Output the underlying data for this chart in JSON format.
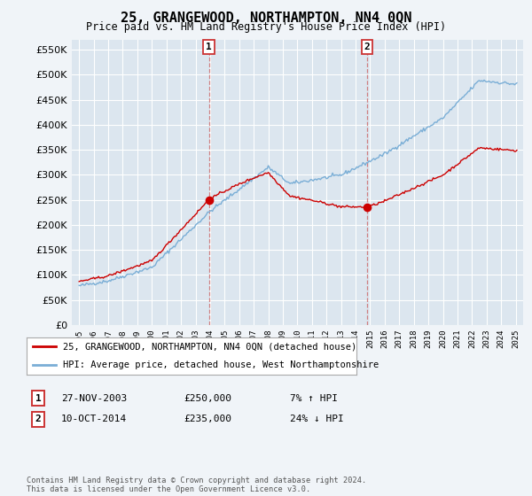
{
  "title": "25, GRANGEWOOD, NORTHAMPTON, NN4 0QN",
  "subtitle": "Price paid vs. HM Land Registry's House Price Index (HPI)",
  "legend_label_red": "25, GRANGEWOOD, NORTHAMPTON, NN4 0QN (detached house)",
  "legend_label_blue": "HPI: Average price, detached house, West Northamptonshire",
  "transaction1_date": "27-NOV-2003",
  "transaction1_price": "£250,000",
  "transaction1_hpi": "7% ↑ HPI",
  "transaction1_year": 2003.92,
  "transaction1_price_val": 250000,
  "transaction2_date": "10-OCT-2014",
  "transaction2_price": "£235,000",
  "transaction2_hpi": "24% ↓ HPI",
  "transaction2_year": 2014.78,
  "transaction2_price_val": 235000,
  "footer": "Contains HM Land Registry data © Crown copyright and database right 2024.\nThis data is licensed under the Open Government Licence v3.0.",
  "background_color": "#f0f4f8",
  "plot_bg_color": "#dce6ef",
  "grid_color": "#ffffff",
  "red_color": "#cc0000",
  "blue_color": "#7aaed6",
  "dashed_color": "#cc6666",
  "ylim_min": 0,
  "ylim_max": 570000,
  "xlim_min": 1994.5,
  "xlim_max": 2025.5
}
